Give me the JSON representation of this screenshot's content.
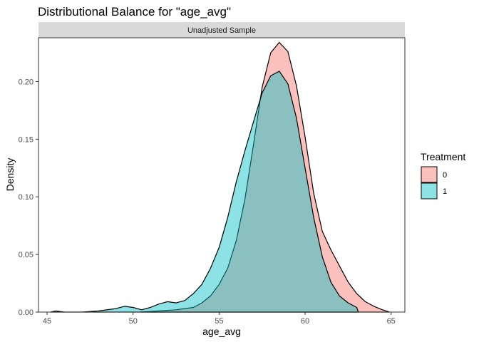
{
  "chart_data": {
    "type": "area",
    "title": "Distributional Balance for \"age_avg\"",
    "facet_label": "Unadjusted Sample",
    "xlabel": "age_avg",
    "ylabel": "Density",
    "xlim": [
      44.5,
      65.8
    ],
    "ylim": [
      0,
      0.238
    ],
    "x_ticks": [
      45,
      50,
      55,
      60,
      65
    ],
    "y_ticks": [
      0.0,
      0.05,
      0.1,
      0.15,
      0.2
    ],
    "y_tick_labels": [
      "0.00",
      "0.05",
      "0.10",
      "0.15",
      "0.20"
    ],
    "grid": false,
    "legend": {
      "title": "Treatment",
      "position": "right",
      "entries": [
        {
          "label": "0",
          "fill": "#F8766D"
        },
        {
          "label": "1",
          "fill": "#00BFC4"
        }
      ]
    },
    "series": [
      {
        "name": "0",
        "color": "#F8766D",
        "x": [
          50.4,
          51.5,
          52.5,
          53.5,
          54.0,
          54.5,
          55.0,
          55.5,
          56.0,
          56.5,
          57.0,
          57.5,
          58.0,
          58.5,
          59.0,
          59.5,
          60.0,
          60.5,
          61.0,
          61.5,
          62.0,
          62.5,
          63.0,
          63.5,
          64.0,
          64.5,
          64.9
        ],
        "y": [
          0.0,
          0.001,
          0.002,
          0.004,
          0.008,
          0.014,
          0.024,
          0.038,
          0.062,
          0.098,
          0.145,
          0.195,
          0.225,
          0.234,
          0.226,
          0.196,
          0.152,
          0.103,
          0.07,
          0.054,
          0.04,
          0.026,
          0.016,
          0.009,
          0.005,
          0.002,
          0.0
        ]
      },
      {
        "name": "1",
        "color": "#00BFC4",
        "x": [
          45.2,
          45.5,
          46.0,
          47.0,
          48.0,
          49.0,
          49.5,
          50.0,
          50.5,
          51.0,
          51.5,
          52.0,
          52.5,
          53.0,
          53.5,
          54.0,
          54.5,
          55.0,
          55.5,
          56.0,
          56.5,
          57.0,
          57.5,
          58.0,
          58.5,
          59.0,
          59.5,
          60.0,
          60.5,
          61.0,
          61.5,
          62.0,
          62.5,
          63.0,
          63.1
        ],
        "y": [
          0.0,
          0.001,
          0.0,
          0.0,
          0.001,
          0.003,
          0.005,
          0.004,
          0.002,
          0.004,
          0.007,
          0.009,
          0.008,
          0.01,
          0.016,
          0.024,
          0.038,
          0.056,
          0.082,
          0.113,
          0.14,
          0.165,
          0.19,
          0.205,
          0.209,
          0.198,
          0.168,
          0.125,
          0.082,
          0.048,
          0.026,
          0.014,
          0.008,
          0.004,
          0.0
        ]
      }
    ]
  }
}
